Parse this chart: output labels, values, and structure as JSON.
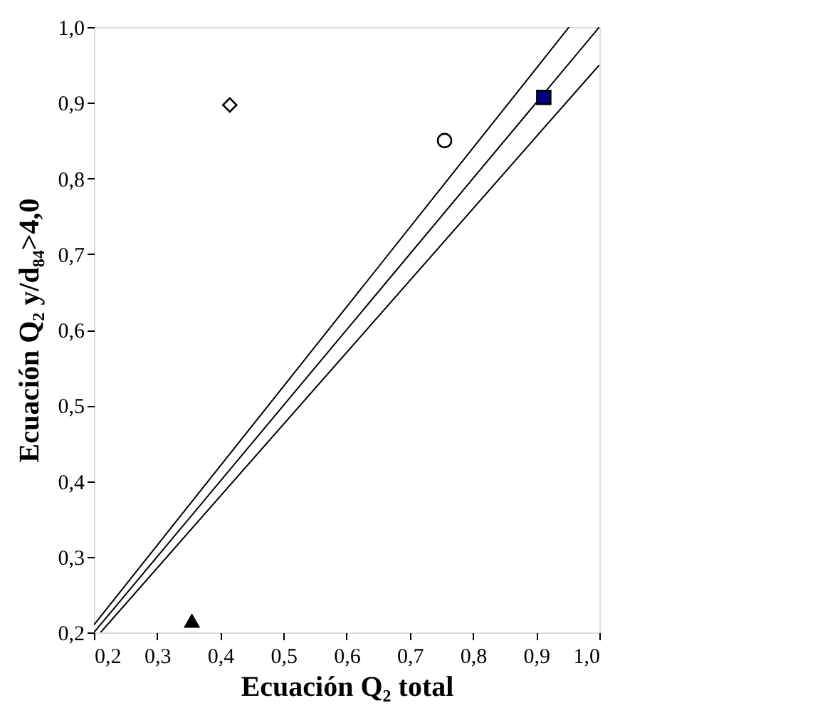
{
  "chart_data": {
    "type": "scatter",
    "xlabel": "Ecuación Q₂ total",
    "ylabel": "Ecuación Q₂ y/d₈₄>4,0",
    "xlim": [
      0.2,
      1.0
    ],
    "ylim": [
      0.2,
      1.0
    ],
    "xticks": [
      {
        "value": 0.2,
        "label": "0,2"
      },
      {
        "value": 0.3,
        "label": "0,3"
      },
      {
        "value": 0.4,
        "label": "0,4"
      },
      {
        "value": 0.5,
        "label": "0,5"
      },
      {
        "value": 0.6,
        "label": "0,6"
      },
      {
        "value": 0.7,
        "label": "0,7"
      },
      {
        "value": 0.8,
        "label": "0,8"
      },
      {
        "value": 0.9,
        "label": "0,9"
      },
      {
        "value": 1.0,
        "label": "1,0"
      }
    ],
    "yticks": [
      {
        "value": 0.2,
        "label": "0,2"
      },
      {
        "value": 0.3,
        "label": "0,3"
      },
      {
        "value": 0.4,
        "label": "0,4"
      },
      {
        "value": 0.5,
        "label": "0,5"
      },
      {
        "value": 0.6,
        "label": "0,6"
      },
      {
        "value": 0.7,
        "label": "0,7"
      },
      {
        "value": 0.8,
        "label": "0,8"
      },
      {
        "value": 0.9,
        "label": "0,9"
      },
      {
        "value": 1.0,
        "label": "1,0"
      }
    ],
    "grid": false,
    "series": [
      {
        "type": "line",
        "x": [
          0.2,
          0.952
        ],
        "values": [
          0.21,
          1.0
        ],
        "color": "#000000",
        "line_style": "solid",
        "marker": "none"
      },
      {
        "type": "line",
        "x": [
          0.2,
          1.0
        ],
        "values": [
          0.2,
          1.0
        ],
        "color": "#000000",
        "line_style": "solid",
        "marker": "none"
      },
      {
        "type": "line",
        "x": [
          0.2105,
          1.0
        ],
        "values": [
          0.2,
          0.95
        ],
        "color": "#000000",
        "line_style": "solid",
        "marker": "none"
      },
      {
        "x": [
          0.415
        ],
        "values": [
          0.897
        ],
        "color": "#000000",
        "marker": "diamond"
      },
      {
        "x": [
          0.755
        ],
        "values": [
          0.85
        ],
        "color": "#000000",
        "marker": "circle"
      },
      {
        "x": [
          0.912
        ],
        "values": [
          0.907
        ],
        "color": "#000080",
        "marker": "square"
      },
      {
        "x": [
          0.355
        ],
        "values": [
          0.215
        ],
        "color": "#000000",
        "marker": "triangle"
      }
    ]
  }
}
